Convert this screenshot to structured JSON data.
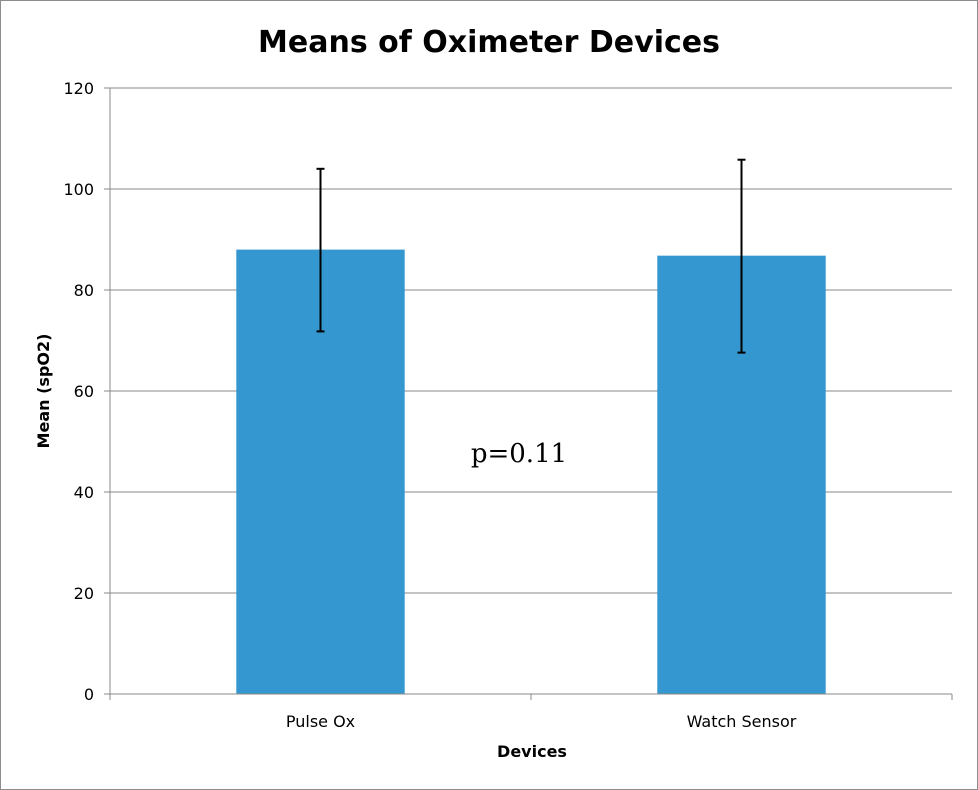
{
  "chart_data": {
    "type": "bar",
    "title": "Means of Oximeter Devices",
    "xlabel": "Devices",
    "ylabel": "Mean (spO2)",
    "categories": [
      "Pulse Ox",
      "Watch Sensor"
    ],
    "values": [
      88,
      86.8
    ],
    "error_bars": [
      {
        "low": 71.8,
        "high": 104
      },
      {
        "low": 67.6,
        "high": 105.8
      }
    ],
    "ylim": [
      0,
      120
    ],
    "yticks": [
      "0",
      "20",
      "40",
      "60",
      "80",
      "100",
      "120"
    ],
    "grid": true,
    "legend": "none",
    "annotation": "p=0.11",
    "bar_color": "#3497cf",
    "grid_color": "#898989"
  }
}
